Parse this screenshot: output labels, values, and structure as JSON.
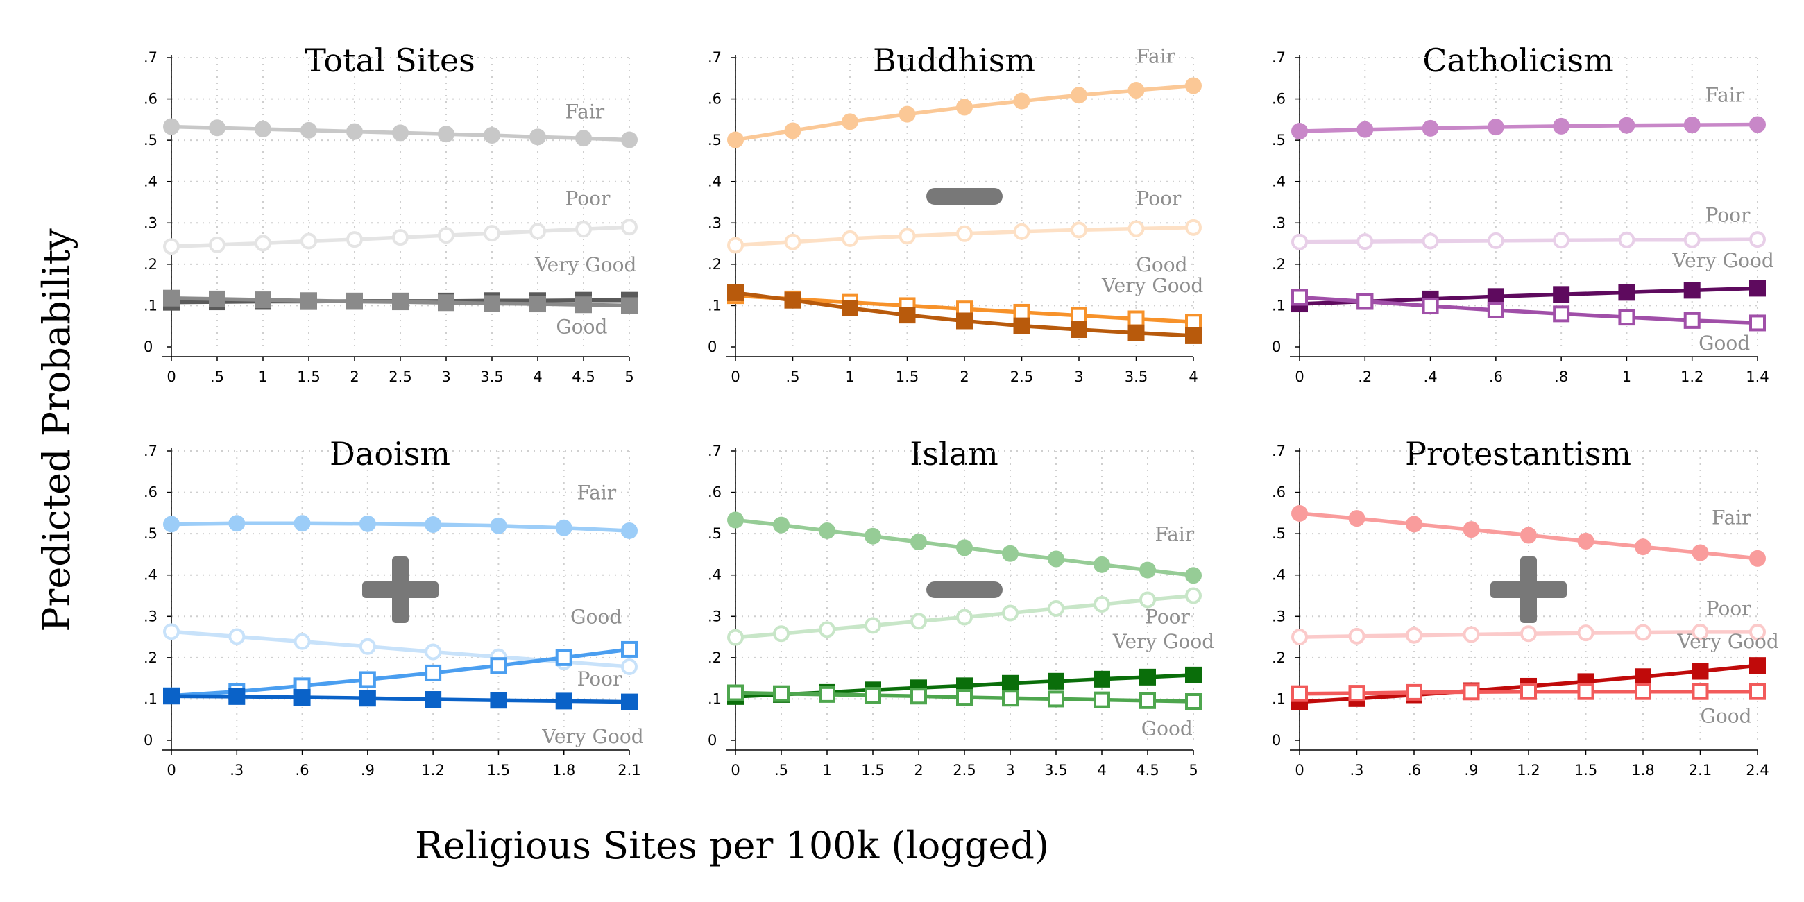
{
  "figure": {
    "ylabel": "Predicted Probability",
    "xlabel": "Religious Sites per 100k (logged)"
  },
  "chart_data": [
    {
      "type": "line",
      "title": "Total Sites",
      "x": [
        0,
        0.5,
        1,
        1.5,
        2,
        2.5,
        3,
        3.5,
        4,
        4.5,
        5
      ],
      "x_tick_labels": [
        "0",
        ".5",
        "1",
        "1.5",
        "2",
        "2.5",
        "3",
        "3.5",
        "4",
        "4.5",
        "5"
      ],
      "xlim": [
        0,
        5
      ],
      "ylim": [
        0,
        0.7
      ],
      "y_ticks": [
        0,
        0.1,
        0.2,
        0.3,
        0.4,
        0.5,
        0.6,
        0.7
      ],
      "y_tick_labels": [
        "0",
        ".1",
        ".2",
        ".3",
        ".4",
        ".5",
        ".6",
        ".7"
      ],
      "grid": true,
      "effect_sign": "",
      "series": [
        {
          "name": "Fair",
          "color": "#c8c8c8",
          "marker": "circle-filled",
          "values": [
            0.533,
            0.53,
            0.527,
            0.524,
            0.521,
            0.518,
            0.515,
            0.512,
            0.508,
            0.505,
            0.501
          ]
        },
        {
          "name": "Poor",
          "color": "#e4e4e4",
          "marker": "circle-open",
          "values": [
            0.243,
            0.247,
            0.251,
            0.256,
            0.26,
            0.265,
            0.27,
            0.275,
            0.28,
            0.285,
            0.29
          ]
        },
        {
          "name": "Very Good",
          "color": "#5a5a5a",
          "marker": "square-filled",
          "values": [
            0.108,
            0.109,
            0.11,
            0.11,
            0.111,
            0.111,
            0.111,
            0.112,
            0.112,
            0.113,
            0.113
          ]
        },
        {
          "name": "Good",
          "color": "#8a8a8a",
          "marker": "square-filled",
          "values": [
            0.118,
            0.116,
            0.114,
            0.112,
            0.11,
            0.109,
            0.107,
            0.105,
            0.104,
            0.102,
            0.1
          ]
        }
      ],
      "series_labels": [
        {
          "text": "Fair",
          "x": 4.3,
          "y": 0.553
        },
        {
          "text": "Poor",
          "x": 4.3,
          "y": 0.343
        },
        {
          "text": "Very Good",
          "x": 3.97,
          "y": 0.183
        },
        {
          "text": "Good",
          "x": 4.2,
          "y": 0.033
        }
      ]
    },
    {
      "type": "line",
      "title": "Buddhism",
      "x": [
        0,
        0.5,
        1,
        1.5,
        2,
        2.5,
        3,
        3.5,
        4
      ],
      "x_tick_labels": [
        "0",
        ".5",
        "1",
        "1.5",
        "2",
        "2.5",
        "3",
        "3.5",
        "4"
      ],
      "xlim": [
        0,
        4
      ],
      "ylim": [
        0,
        0.7
      ],
      "y_ticks": [
        0,
        0.1,
        0.2,
        0.3,
        0.4,
        0.5,
        0.6,
        0.7
      ],
      "y_tick_labels": [
        "0",
        ".1",
        ".2",
        ".3",
        ".4",
        ".5",
        ".6",
        ".7"
      ],
      "grid": true,
      "effect_sign": "minus",
      "series": [
        {
          "name": "Fair",
          "color": "#fbc896",
          "marker": "circle-filled",
          "values": [
            0.501,
            0.523,
            0.545,
            0.563,
            0.58,
            0.595,
            0.609,
            0.621,
            0.632
          ]
        },
        {
          "name": "Poor",
          "color": "#fde0c5",
          "marker": "circle-open",
          "values": [
            0.246,
            0.254,
            0.262,
            0.268,
            0.274,
            0.279,
            0.283,
            0.286,
            0.289
          ]
        },
        {
          "name": "Good",
          "color": "#f7922a",
          "marker": "square-open",
          "values": [
            0.124,
            0.116,
            0.108,
            0.1,
            0.092,
            0.084,
            0.076,
            0.068,
            0.06
          ]
        },
        {
          "name": "Very Good",
          "color": "#b85a0c",
          "marker": "square-filled",
          "values": [
            0.131,
            0.113,
            0.094,
            0.077,
            0.063,
            0.051,
            0.042,
            0.034,
            0.027
          ]
        }
      ],
      "series_labels": [
        {
          "text": "Fair",
          "x": 3.5,
          "y": 0.687
        },
        {
          "text": "Poor",
          "x": 3.5,
          "y": 0.343
        },
        {
          "text": "Good",
          "x": 3.5,
          "y": 0.183
        },
        {
          "text": "Very Good",
          "x": 3.2,
          "y": 0.133
        }
      ]
    },
    {
      "type": "line",
      "title": "Catholicism",
      "x": [
        0,
        0.2,
        0.4,
        0.6,
        0.8,
        1,
        1.2,
        1.4
      ],
      "x_tick_labels": [
        "0",
        ".2",
        ".4",
        ".6",
        ".8",
        "1",
        "1.2",
        "1.4"
      ],
      "xlim": [
        0,
        1.4
      ],
      "ylim": [
        0,
        0.7
      ],
      "y_ticks": [
        0,
        0.1,
        0.2,
        0.3,
        0.4,
        0.5,
        0.6,
        0.7
      ],
      "y_tick_labels": [
        "0",
        ".1",
        ".2",
        ".3",
        ".4",
        ".5",
        ".6",
        ".7"
      ],
      "grid": true,
      "effect_sign": "",
      "series": [
        {
          "name": "Fair",
          "color": "#c887c8",
          "marker": "circle-filled",
          "values": [
            0.522,
            0.526,
            0.529,
            0.532,
            0.534,
            0.536,
            0.537,
            0.538
          ]
        },
        {
          "name": "Poor",
          "color": "#e8cfe8",
          "marker": "circle-open",
          "values": [
            0.254,
            0.255,
            0.256,
            0.257,
            0.258,
            0.259,
            0.259,
            0.26
          ]
        },
        {
          "name": "Very Good",
          "color": "#5e0a5e",
          "marker": "square-filled",
          "values": [
            0.104,
            0.11,
            0.116,
            0.122,
            0.127,
            0.132,
            0.137,
            0.142
          ]
        },
        {
          "name": "Good",
          "color": "#a04fa8",
          "marker": "square-open",
          "values": [
            0.12,
            0.11,
            0.099,
            0.089,
            0.08,
            0.072,
            0.064,
            0.058
          ]
        }
      ],
      "series_labels": [
        {
          "text": "Fair",
          "x": 1.24,
          "y": 0.593
        },
        {
          "text": "Poor",
          "x": 1.24,
          "y": 0.303
        },
        {
          "text": "Very Good",
          "x": 1.14,
          "y": 0.193
        },
        {
          "text": "Good",
          "x": 1.22,
          "y": -0.007
        }
      ]
    },
    {
      "type": "line",
      "title": "Daoism",
      "x": [
        0,
        0.3,
        0.6,
        0.9,
        1.2,
        1.5,
        1.8,
        2.1
      ],
      "x_tick_labels": [
        "0",
        ".3",
        ".6",
        ".9",
        "1.2",
        "1.5",
        "1.8",
        "2.1"
      ],
      "xlim": [
        0,
        2.1
      ],
      "ylim": [
        0,
        0.7
      ],
      "y_ticks": [
        0,
        0.1,
        0.2,
        0.3,
        0.4,
        0.5,
        0.6,
        0.7
      ],
      "y_tick_labels": [
        "0",
        ".1",
        ".2",
        ".3",
        ".4",
        ".5",
        ".6",
        ".7"
      ],
      "grid": true,
      "effect_sign": "plus",
      "series": [
        {
          "name": "Fair",
          "color": "#9ccdf8",
          "marker": "circle-filled",
          "values": [
            0.523,
            0.525,
            0.525,
            0.524,
            0.522,
            0.519,
            0.514,
            0.507
          ]
        },
        {
          "name": "Good",
          "color": "#c8e2fa",
          "marker": "circle-open",
          "values": [
            0.263,
            0.251,
            0.239,
            0.227,
            0.214,
            0.202,
            0.19,
            0.178
          ]
        },
        {
          "name": "Poor",
          "color": "#4a9ef0",
          "marker": "square-open",
          "values": [
            0.108,
            0.118,
            0.132,
            0.147,
            0.163,
            0.181,
            0.2,
            0.22
          ]
        },
        {
          "name": "Very Good",
          "color": "#0a62c8",
          "marker": "square-filled",
          "values": [
            0.107,
            0.106,
            0.104,
            0.102,
            0.099,
            0.097,
            0.095,
            0.093
          ]
        }
      ],
      "series_labels": [
        {
          "text": "Fair",
          "x": 1.86,
          "y": 0.583
        },
        {
          "text": "Good",
          "x": 1.83,
          "y": 0.283
        },
        {
          "text": "Poor",
          "x": 1.86,
          "y": 0.133
        },
        {
          "text": "Very Good",
          "x": 1.7,
          "y": -0.007
        }
      ]
    },
    {
      "type": "line",
      "title": "Islam",
      "x": [
        0,
        0.5,
        1,
        1.5,
        2,
        2.5,
        3,
        3.5,
        4,
        4.5,
        5
      ],
      "x_tick_labels": [
        "0",
        ".5",
        "1",
        "1.5",
        "2",
        "2.5",
        "3",
        "3.5",
        "4",
        "4.5",
        "5"
      ],
      "xlim": [
        0,
        5
      ],
      "ylim": [
        0,
        0.7
      ],
      "y_ticks": [
        0,
        0.1,
        0.2,
        0.3,
        0.4,
        0.5,
        0.6,
        0.7
      ],
      "y_tick_labels": [
        "0",
        ".1",
        ".2",
        ".3",
        ".4",
        ".5",
        ".6",
        ".7"
      ],
      "grid": true,
      "effect_sign": "minus",
      "series": [
        {
          "name": "Fair",
          "color": "#96cc96",
          "marker": "circle-filled",
          "values": [
            0.533,
            0.521,
            0.507,
            0.494,
            0.48,
            0.466,
            0.452,
            0.439,
            0.425,
            0.412,
            0.399
          ]
        },
        {
          "name": "Poor",
          "color": "#c8e6c8",
          "marker": "circle-open",
          "values": [
            0.249,
            0.258,
            0.268,
            0.278,
            0.288,
            0.298,
            0.308,
            0.319,
            0.329,
            0.34,
            0.35
          ]
        },
        {
          "name": "Very Good",
          "color": "#0a6e0a",
          "marker": "square-filled",
          "values": [
            0.106,
            0.111,
            0.116,
            0.122,
            0.127,
            0.132,
            0.138,
            0.143,
            0.148,
            0.153,
            0.158
          ]
        },
        {
          "name": "Good",
          "color": "#4ea64e",
          "marker": "square-open",
          "values": [
            0.115,
            0.113,
            0.111,
            0.109,
            0.107,
            0.104,
            0.102,
            0.1,
            0.098,
            0.096,
            0.094
          ]
        }
      ],
      "series_labels": [
        {
          "text": "Fair",
          "x": 4.58,
          "y": 0.483
        },
        {
          "text": "Poor",
          "x": 4.47,
          "y": 0.283
        },
        {
          "text": "Very Good",
          "x": 4.12,
          "y": 0.223
        },
        {
          "text": "Good",
          "x": 4.43,
          "y": 0.013
        }
      ]
    },
    {
      "type": "line",
      "title": "Protestantism",
      "x": [
        0,
        0.3,
        0.6,
        0.9,
        1.2,
        1.5,
        1.8,
        2.1,
        2.4
      ],
      "x_tick_labels": [
        "0",
        ".3",
        ".6",
        ".9",
        "1.2",
        "1.5",
        "1.8",
        "2.1",
        "2.4"
      ],
      "xlim": [
        0,
        2.4
      ],
      "ylim": [
        0,
        0.7
      ],
      "y_ticks": [
        0,
        0.1,
        0.2,
        0.3,
        0.4,
        0.5,
        0.6,
        0.7
      ],
      "y_tick_labels": [
        "0",
        ".1",
        ".2",
        ".3",
        ".4",
        ".5",
        ".6",
        ".7"
      ],
      "grid": true,
      "effect_sign": "plus",
      "series": [
        {
          "name": "Fair",
          "color": "#f99c9c",
          "marker": "circle-filled",
          "values": [
            0.549,
            0.537,
            0.523,
            0.51,
            0.496,
            0.482,
            0.468,
            0.454,
            0.44
          ]
        },
        {
          "name": "Poor",
          "color": "#fbcaca",
          "marker": "circle-open",
          "values": [
            0.25,
            0.252,
            0.254,
            0.256,
            0.258,
            0.26,
            0.261,
            0.262,
            0.262
          ]
        },
        {
          "name": "Very Good",
          "color": "#c00a0a",
          "marker": "square-filled",
          "values": [
            0.093,
            0.101,
            0.11,
            0.12,
            0.131,
            0.142,
            0.154,
            0.167,
            0.181
          ]
        },
        {
          "name": "Good",
          "color": "#f25a5a",
          "marker": "square-open",
          "values": [
            0.113,
            0.114,
            0.116,
            0.117,
            0.118,
            0.118,
            0.118,
            0.118,
            0.118
          ]
        }
      ],
      "series_labels": [
        {
          "text": "Fair",
          "x": 2.16,
          "y": 0.523
        },
        {
          "text": "Poor",
          "x": 2.13,
          "y": 0.303
        },
        {
          "text": "Very Good",
          "x": 1.98,
          "y": 0.223
        },
        {
          "text": "Good",
          "x": 2.1,
          "y": 0.043
        }
      ]
    }
  ]
}
